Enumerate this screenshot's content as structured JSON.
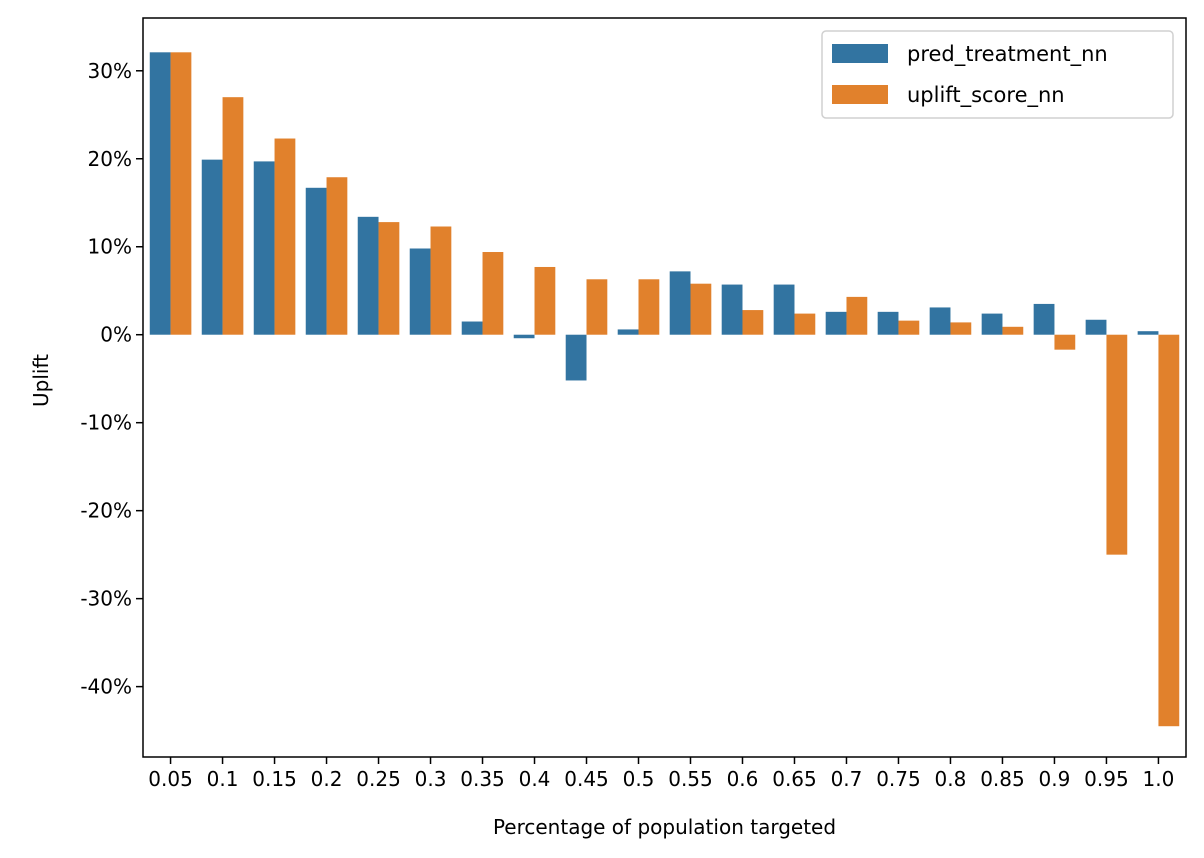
{
  "chart_data": {
    "type": "bar",
    "xlabel": "Percentage of population targeted",
    "ylabel": "Uplift",
    "categories": [
      "0.05",
      "0.1",
      "0.15",
      "0.2",
      "0.25",
      "0.3",
      "0.35",
      "0.4",
      "0.45",
      "0.5",
      "0.55",
      "0.6",
      "0.65",
      "0.7",
      "0.75",
      "0.8",
      "0.85",
      "0.9",
      "0.95",
      "1.0"
    ],
    "ylim": [
      -0.48,
      0.36
    ],
    "yticks": [
      0.3,
      0.2,
      0.1,
      0.0,
      -0.1,
      -0.2,
      -0.3,
      -0.4
    ],
    "ytick_labels": [
      "30%",
      "20%",
      "10%",
      "0%",
      "-10%",
      "-20%",
      "-30%",
      "-40%"
    ],
    "legend_position": "top-right",
    "grid": false,
    "series": [
      {
        "name": "pred_treatment_nn",
        "color": "#3274a1",
        "values": [
          0.321,
          0.199,
          0.197,
          0.167,
          0.134,
          0.098,
          0.015,
          -0.004,
          -0.052,
          0.006,
          0.072,
          0.057,
          0.057,
          0.026,
          0.026,
          0.031,
          0.024,
          0.035,
          0.017,
          0.004
        ]
      },
      {
        "name": "uplift_score_nn",
        "color": "#e1812c",
        "values": [
          0.321,
          0.27,
          0.223,
          0.179,
          0.128,
          0.123,
          0.094,
          0.077,
          0.063,
          0.063,
          0.058,
          0.028,
          0.024,
          0.043,
          0.016,
          0.014,
          0.009,
          -0.017,
          -0.25,
          -0.445
        ]
      }
    ]
  }
}
